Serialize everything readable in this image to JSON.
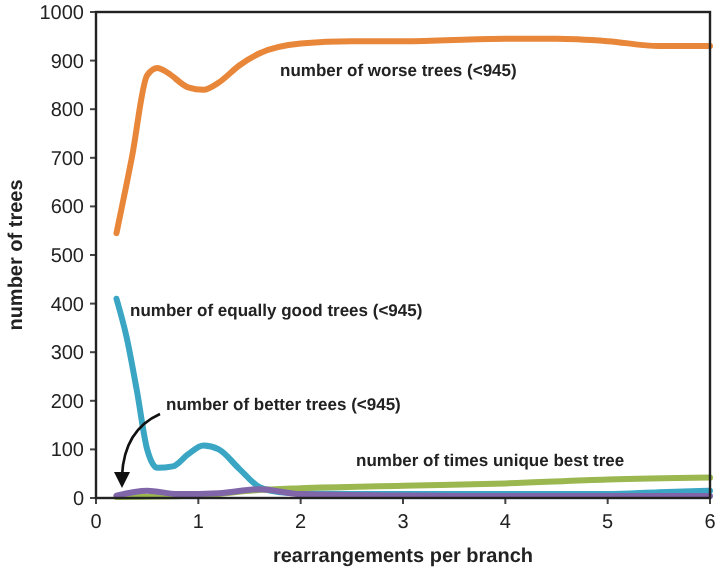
{
  "chart_data": {
    "type": "line",
    "xlabel": "rearrangements per branch",
    "ylabel": "number of trees",
    "xlim": [
      0,
      6
    ],
    "xticks": [
      0,
      1,
      2,
      3,
      4,
      5,
      6
    ],
    "ylim": [
      0,
      1000
    ],
    "yticks": [
      0,
      100,
      200,
      300,
      400,
      500,
      600,
      700,
      800,
      900,
      1000
    ],
    "grid": false,
    "marker": "none",
    "line_style": "solid",
    "series": [
      {
        "name": "number of worse trees (<945)",
        "color": "#e8873a",
        "x": [
          0.2,
          0.35,
          0.5,
          0.6,
          0.7,
          0.9,
          1.05,
          1.2,
          1.4,
          1.6,
          2,
          2.5,
          3,
          4,
          4.5,
          5,
          5.5,
          6
        ],
        "values": [
          545,
          700,
          870,
          885,
          875,
          845,
          840,
          855,
          890,
          915,
          935,
          940,
          940,
          945,
          945,
          940,
          930,
          930
        ]
      },
      {
        "name": "number of equally good trees (<945)",
        "color": "#3aa6c4",
        "x": [
          0.2,
          0.3,
          0.4,
          0.5,
          0.6,
          0.75,
          0.9,
          1.05,
          1.2,
          1.4,
          1.6,
          1.8,
          2,
          3,
          4,
          5,
          5.5,
          6
        ],
        "values": [
          410,
          330,
          220,
          100,
          62,
          65,
          90,
          108,
          100,
          60,
          22,
          12,
          10,
          8,
          8,
          8,
          12,
          15
        ]
      },
      {
        "name": "number of times unique best tree",
        "color": "#9ab750",
        "x": [
          0.2,
          1,
          1.5,
          2,
          3,
          4,
          5,
          6
        ],
        "values": [
          2,
          5,
          15,
          20,
          25,
          30,
          38,
          42
        ]
      },
      {
        "name": "number of better trees (<945)",
        "color": "#8065a8",
        "x": [
          0.2,
          0.5,
          0.8,
          1.2,
          1.6,
          2,
          3,
          4,
          5,
          6
        ],
        "values": [
          5,
          15,
          8,
          10,
          18,
          8,
          5,
          4,
          4,
          4
        ]
      }
    ]
  }
}
